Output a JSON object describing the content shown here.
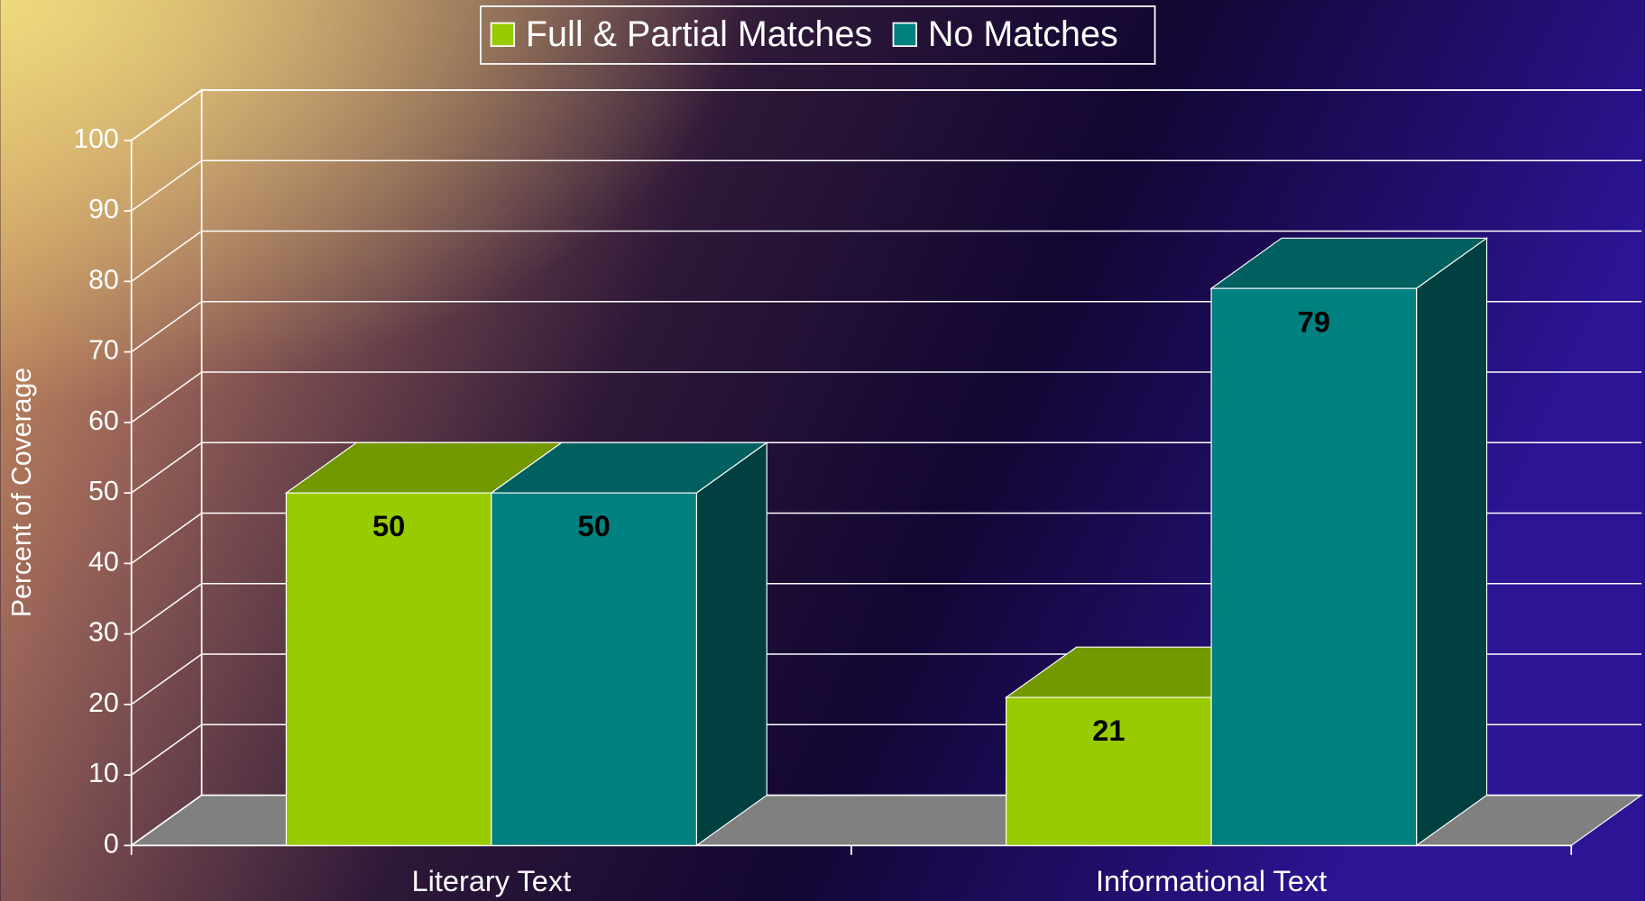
{
  "chart_data": {
    "type": "bar3d",
    "categories": [
      "Literary Text",
      "Informational Text"
    ],
    "series": [
      {
        "name": "Full & Partial Matches",
        "color": "#99cc00",
        "values": [
          50,
          21
        ]
      },
      {
        "name": "No Matches",
        "color": "#008080",
        "values": [
          50,
          79
        ]
      }
    ],
    "y_label": "Percent of Coverage",
    "ylim": [
      0,
      100
    ],
    "yticks": [
      0,
      10,
      20,
      30,
      40,
      50,
      60,
      70,
      80,
      90,
      100
    ],
    "grid": true,
    "legend": "top"
  }
}
